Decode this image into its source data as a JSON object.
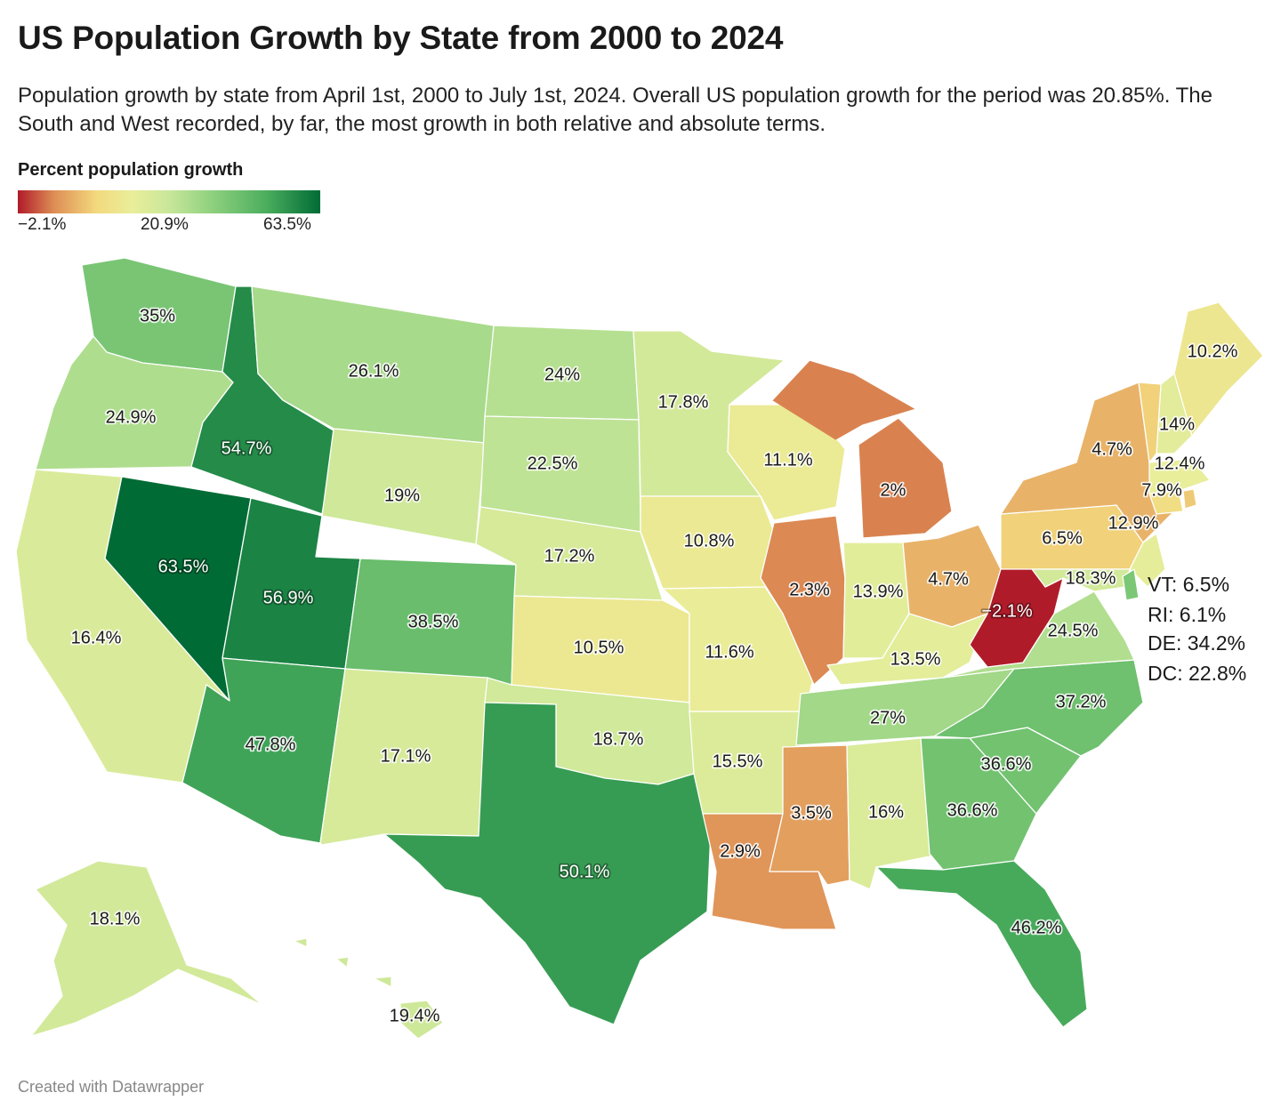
{
  "header": {
    "title": "US Population Growth by State from 2000 to 2024",
    "subtitle": "Population growth by state from April 1st, 2000 to July 1st, 2024. Overall US population growth for the period was 20.85%. The South and West recorded, by far, the most growth in both relative and absolute terms."
  },
  "legend": {
    "title": "Percent population growth",
    "ticks": [
      "−2.1%",
      "20.9%",
      "63.5%"
    ],
    "colors": [
      "#b01b2a",
      "#de8e55",
      "#f3d97e",
      "#e9ee9a",
      "#c8e79a",
      "#8fd17f",
      "#4cae5e",
      "#006b35"
    ]
  },
  "states": [
    {
      "id": "WA",
      "value": 35,
      "label": "35%"
    },
    {
      "id": "OR",
      "value": 24.9,
      "label": "24.9%"
    },
    {
      "id": "CA",
      "value": 16.4,
      "label": "16.4%"
    },
    {
      "id": "ID",
      "value": 54.7,
      "label": "54.7%"
    },
    {
      "id": "NV",
      "value": 63.5,
      "label": "63.5%"
    },
    {
      "id": "MT",
      "value": 26.1,
      "label": "26.1%"
    },
    {
      "id": "WY",
      "value": 19,
      "label": "19%"
    },
    {
      "id": "UT",
      "value": 56.9,
      "label": "56.9%"
    },
    {
      "id": "AZ",
      "value": 47.8,
      "label": "47.8%"
    },
    {
      "id": "CO",
      "value": 38.5,
      "label": "38.5%"
    },
    {
      "id": "NM",
      "value": 17.1,
      "label": "17.1%"
    },
    {
      "id": "ND",
      "value": 24,
      "label": "24%"
    },
    {
      "id": "SD",
      "value": 22.5,
      "label": "22.5%"
    },
    {
      "id": "NE",
      "value": 17.2,
      "label": "17.2%"
    },
    {
      "id": "KS",
      "value": 10.5,
      "label": "10.5%"
    },
    {
      "id": "OK",
      "value": 18.7,
      "label": "18.7%"
    },
    {
      "id": "TX",
      "value": 50.1,
      "label": "50.1%"
    },
    {
      "id": "MN",
      "value": 17.8,
      "label": "17.8%"
    },
    {
      "id": "IA",
      "value": 10.8,
      "label": "10.8%"
    },
    {
      "id": "MO",
      "value": 11.6,
      "label": "11.6%"
    },
    {
      "id": "AR",
      "value": 15.5,
      "label": "15.5%"
    },
    {
      "id": "LA",
      "value": 2.9,
      "label": "2.9%"
    },
    {
      "id": "WI",
      "value": 11.1,
      "label": "11.1%"
    },
    {
      "id": "IL",
      "value": 2.3,
      "label": "2.3%"
    },
    {
      "id": "MI",
      "value": 2,
      "label": "2%"
    },
    {
      "id": "IN",
      "value": 13.9,
      "label": "13.9%"
    },
    {
      "id": "OH",
      "value": 4.7,
      "label": "4.7%"
    },
    {
      "id": "KY",
      "value": 13.5,
      "label": "13.5%"
    },
    {
      "id": "TN",
      "value": 27,
      "label": "27%"
    },
    {
      "id": "MS",
      "value": 3.5,
      "label": "3.5%"
    },
    {
      "id": "AL",
      "value": 16,
      "label": "16%"
    },
    {
      "id": "GA",
      "value": 36.6,
      "label": "36.6%"
    },
    {
      "id": "FL",
      "value": 46.2,
      "label": "46.2%"
    },
    {
      "id": "SC",
      "value": 36.6,
      "label": "36.6%"
    },
    {
      "id": "NC",
      "value": 37.2,
      "label": "37.2%"
    },
    {
      "id": "VA",
      "value": 24.5,
      "label": "24.5%"
    },
    {
      "id": "WV",
      "value": -2.1,
      "label": "−2.1%"
    },
    {
      "id": "PA",
      "value": 6.5,
      "label": "6.5%"
    },
    {
      "id": "NY",
      "value": 4.7,
      "label": "4.7%"
    },
    {
      "id": "MD",
      "value": 18.3,
      "label": "18.3%"
    },
    {
      "id": "NJ",
      "value": 12.9,
      "label": "12.9%"
    },
    {
      "id": "CT",
      "value": 7.9,
      "label": "7.9%"
    },
    {
      "id": "MA",
      "value": 12.4,
      "label": "12.4%"
    },
    {
      "id": "NH",
      "value": 14,
      "label": "14%"
    },
    {
      "id": "ME",
      "value": 10.2,
      "label": "10.2%"
    },
    {
      "id": "AK",
      "value": 18.1,
      "label": "18.1%"
    },
    {
      "id": "HI",
      "value": 19.4,
      "label": "19.4%"
    },
    {
      "id": "VT",
      "value": 6.5,
      "label": ""
    },
    {
      "id": "RI",
      "value": 6.1,
      "label": ""
    },
    {
      "id": "DE",
      "value": 34.2,
      "label": ""
    }
  ],
  "side_notes": [
    "VT: 6.5%",
    "RI: 6.1%",
    "DE: 34.2%",
    "DC: 22.8%"
  ],
  "footer": {
    "credit": "Created with Datawrapper"
  }
}
